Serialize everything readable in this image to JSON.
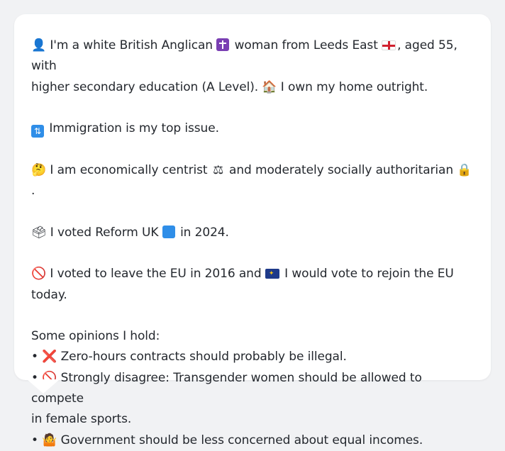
{
  "profile": {
    "line1_a": "I'm a white British Anglican",
    "line1_b": "woman from Leeds East",
    "line1_c": ", aged 55, with",
    "line2_a": "higher secondary education (A Level).",
    "line2_b": "I own my home outright.",
    "top_issue": "Immigration is my top issue.",
    "econ_a": "I am economically centrist",
    "econ_b": "and moderately socially authoritarian",
    "econ_c": ".",
    "vote_a": "I voted Reform UK",
    "vote_b": "in 2024.",
    "eu_a": "I voted to leave the EU in 2016 and",
    "eu_b": "I would vote to rejoin the EU today."
  },
  "opinions": {
    "heading": "Some opinions I hold:",
    "items": [
      "Zero-hours contracts should probably be illegal.",
      "Strongly disagree: Transgender women should be allowed to compete",
      "in female sports.",
      "Government should be less concerned about equal incomes."
    ]
  },
  "icons": {
    "person": "person-icon",
    "cross": "latin-cross-icon",
    "england_flag": "england-flag-icon",
    "house": "house-icon",
    "immigration": "passport-control-icon",
    "thinking": "thinking-face-icon",
    "scales": "balance-scale-icon",
    "lock": "lock-icon",
    "ballot": "ballot-box-icon",
    "blue_square": "blue-square-icon",
    "prohibited": "prohibited-icon",
    "eu_flag": "eu-flag-icon",
    "red_x": "cross-mark-icon",
    "shrug": "shrug-icon"
  }
}
